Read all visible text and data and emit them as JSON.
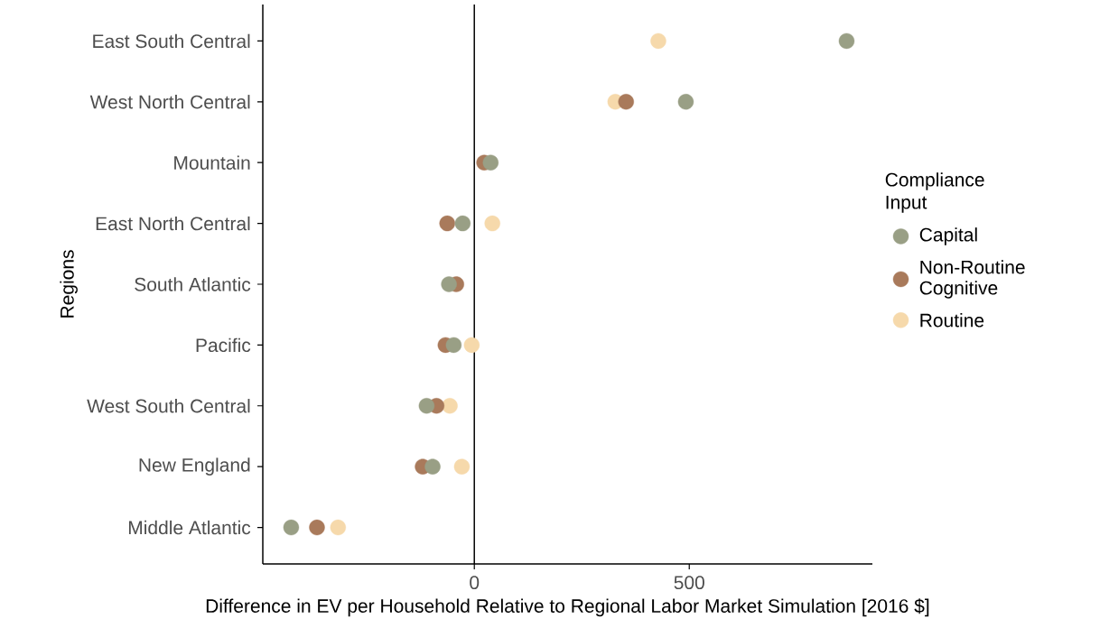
{
  "chart_data": {
    "type": "scatter",
    "xlabel": "Difference in EV per Household Relative to Regional Labor Market Simulation [2016 $]",
    "ylabel": "Regions",
    "legend_title": "Compliance Input",
    "orientation": "horizontal",
    "categories": [
      "East South Central",
      "West North Central",
      "Mountain",
      "East North Central",
      "South Atlantic",
      "Pacific",
      "West South Central",
      "New England",
      "Middle Atlantic"
    ],
    "xlim": [
      -492,
      926
    ],
    "xticks": [
      0,
      500
    ],
    "grid": false,
    "legend": "right",
    "marker": "circle",
    "ref_lines": [
      {
        "axis": "x",
        "value": 0,
        "color": "#000000"
      }
    ],
    "series": [
      {
        "name": "Capital",
        "color": "#999f85",
        "values": [
          866,
          492,
          38,
          -27,
          -59,
          -48,
          -111,
          -97,
          -426
        ]
      },
      {
        "name": "Non-Routine Cognitive",
        "color": "#a97a5b",
        "values": [
          null,
          353,
          23,
          -63,
          -42,
          -67,
          -88,
          -120,
          -366
        ]
      },
      {
        "name": "Routine",
        "color": "#f6d9ab",
        "values": [
          428,
          328,
          null,
          42,
          null,
          -6,
          -57,
          -29,
          -317
        ]
      }
    ]
  }
}
